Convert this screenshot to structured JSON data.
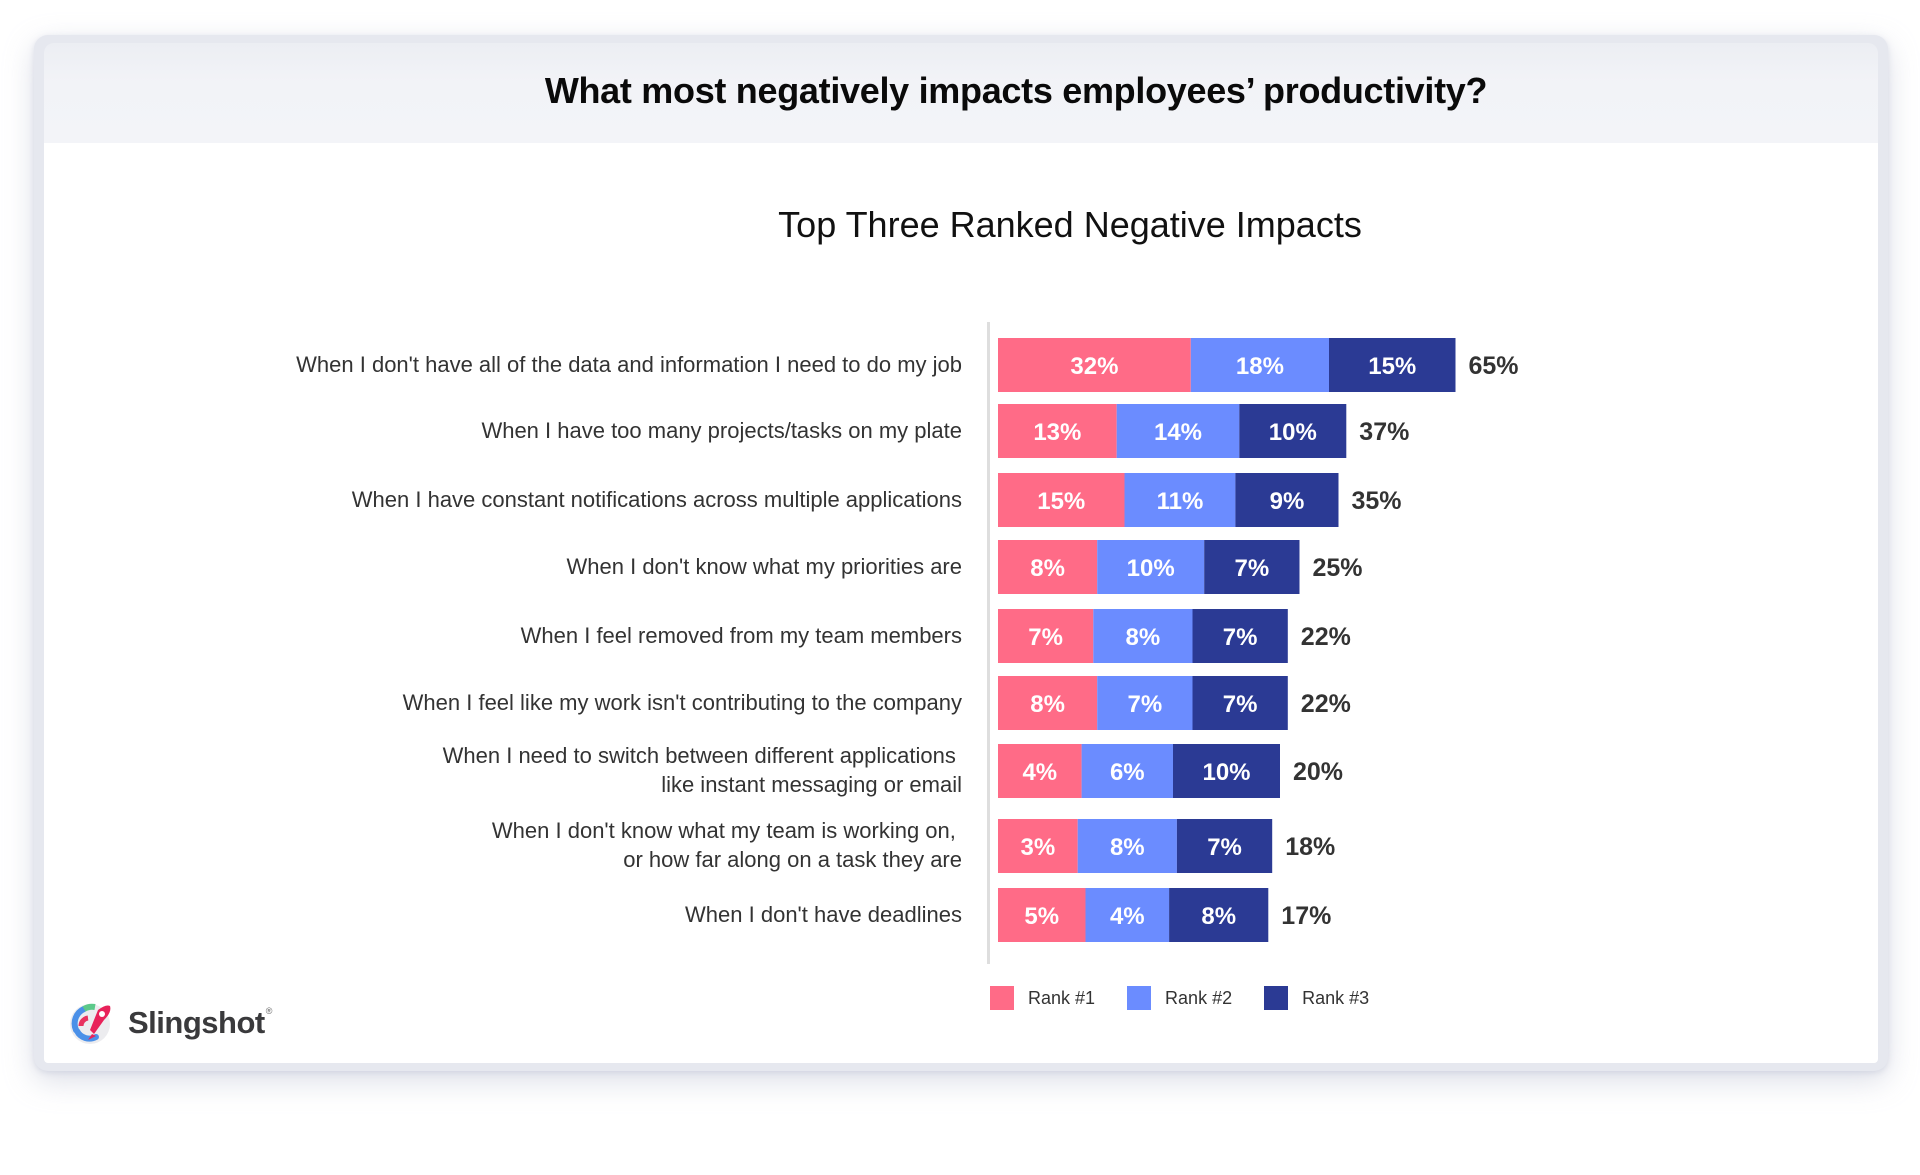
{
  "header": {
    "title": "What most negatively impacts employees’ productivity?"
  },
  "brand": {
    "name": "Slingshot",
    "mark": "®",
    "icon": "slingshot-rocket-logo-icon"
  },
  "chart_data": {
    "type": "bar",
    "orientation": "horizontal",
    "stacked": true,
    "title": "Top Three Ranked Negative Impacts",
    "xlabel": "",
    "ylabel": "",
    "grid": false,
    "legend_position": "bottom",
    "colors": {
      "Rank #1": "#ff6b87",
      "Rank #2": "#6b8cff",
      "Rank #3": "#2b3a94"
    },
    "categories": [
      "When I don't have all of the data and information I need to do my job",
      "When I have too many projects/tasks on my plate",
      "When I have constant notifications across multiple applications",
      "When I don't know what my priorities are",
      "When I feel removed from my team members",
      "When I feel like my work isn't contributing to the company",
      "When I need to switch between different applications \nlike instant messaging or email",
      "When I don't know what my team is working on, \nor how far along on a task they are",
      "When I don't have deadlines"
    ],
    "series": [
      {
        "name": "Rank #1",
        "values": [
          32,
          13,
          15,
          8,
          7,
          8,
          4,
          3,
          5
        ],
        "labels": [
          "32%",
          "13%",
          "15%",
          "8%",
          "7%",
          "8%",
          "4%",
          "3%",
          "5%"
        ]
      },
      {
        "name": "Rank #2",
        "values": [
          18,
          14,
          11,
          10,
          8,
          7,
          6,
          8,
          4
        ],
        "labels": [
          "18%",
          "14%",
          "11%",
          "10%",
          "8%",
          "7%",
          "6%",
          "8%",
          "4%"
        ]
      },
      {
        "name": "Rank #3",
        "values": [
          15,
          10,
          9,
          7,
          7,
          7,
          10,
          7,
          8
        ],
        "labels": [
          "15%",
          "10%",
          "9%",
          "7%",
          "7%",
          "7%",
          "10%",
          "7%",
          "8%"
        ]
      }
    ],
    "totals": [
      65,
      37,
      35,
      25,
      22,
      22,
      20,
      18,
      17
    ],
    "total_labels": [
      "65%",
      "37%",
      "35%",
      "25%",
      "22%",
      "22%",
      "20%",
      "18%",
      "17%"
    ]
  }
}
